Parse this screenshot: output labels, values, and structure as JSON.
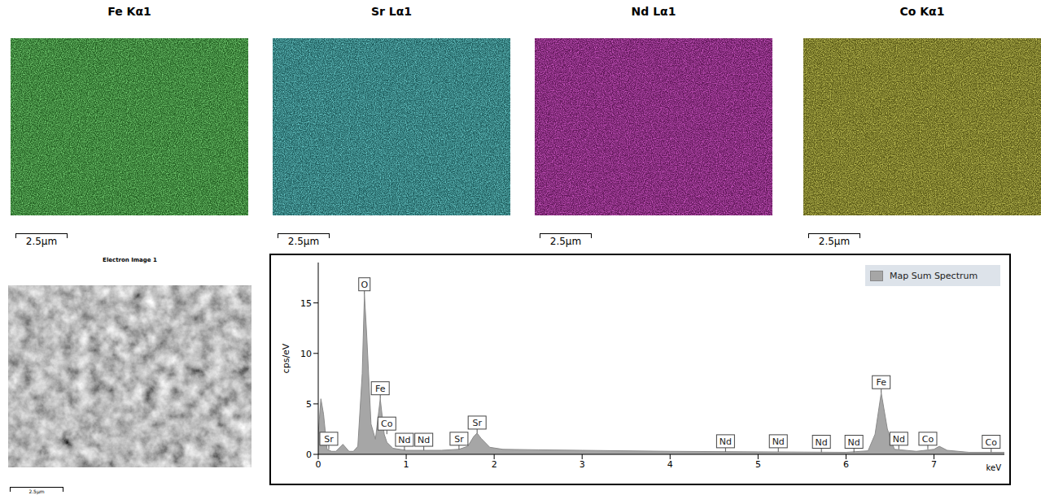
{
  "maps": [
    {
      "title": "Fe Kα1",
      "color": "#3cc43a",
      "scale_bar": "2.5µm"
    },
    {
      "title": "Sr Lα1",
      "color": "#2fb8b8",
      "scale_bar": "2.5µm"
    },
    {
      "title": "Nd Lα1",
      "color": "#c020b0",
      "scale_bar": "2.5µm"
    },
    {
      "title": "Co Kα1",
      "color": "#b0b020",
      "scale_bar": "2.5µm"
    }
  ],
  "electron_image": {
    "title": "Electron Image 1",
    "scale_bar": "2.5µm"
  },
  "chart_data": {
    "type": "area",
    "y_label": "cps/eV",
    "x_label": "keV",
    "legend": "top-right",
    "series_name": "Map Sum Spectrum",
    "color": "#a6a6a6",
    "x": [
      0,
      0.03,
      0.06,
      0.1,
      0.15,
      0.2,
      0.28,
      0.35,
      0.4,
      0.45,
      0.5,
      0.525,
      0.55,
      0.6,
      0.65,
      0.705,
      0.75,
      0.78,
      0.85,
      1.0,
      1.2,
      1.4,
      1.6,
      1.7,
      1.77,
      1.806,
      1.85,
      1.95,
      2.1,
      2.5,
      3,
      4,
      5,
      6,
      6.25,
      6.33,
      6.4,
      6.47,
      6.55,
      6.8,
      7.0,
      7.06,
      7.15,
      7.4,
      7.8
    ],
    "values": [
      2,
      5.5,
      4,
      0.5,
      0.3,
      0.3,
      1.0,
      0.3,
      0.3,
      0.8,
      8,
      15.8,
      12,
      3,
      1.5,
      5.5,
      2,
      1.2,
      0.6,
      0.4,
      0.4,
      0.4,
      0.5,
      0.8,
      1.8,
      2.1,
      1.6,
      0.7,
      0.5,
      0.45,
      0.4,
      0.3,
      0.25,
      0.2,
      0.35,
      2,
      6.1,
      2.5,
      0.5,
      0.3,
      0.5,
      0.8,
      0.4,
      0.2,
      0.2
    ],
    "xlim": [
      0,
      7.8
    ],
    "xticks": [
      0,
      1,
      2,
      3,
      4,
      5,
      6,
      7
    ],
    "ylim": [
      0,
      19
    ],
    "yticks": [
      0,
      5,
      10,
      15
    ],
    "peak_labels": [
      {
        "label": "Sr",
        "x": 0.12
      },
      {
        "label": "O",
        "x": 0.525
      },
      {
        "label": "Fe",
        "x": 0.705
      },
      {
        "label": "Co",
        "x": 0.78
      },
      {
        "label": "Nd",
        "x": 0.98
      },
      {
        "label": "Nd",
        "x": 1.2
      },
      {
        "label": "Sr",
        "x": 1.6
      },
      {
        "label": "Sr",
        "x": 1.806
      },
      {
        "label": "Nd",
        "x": 4.63
      },
      {
        "label": "Nd",
        "x": 5.23
      },
      {
        "label": "Nd",
        "x": 5.72
      },
      {
        "label": "Nd",
        "x": 6.09
      },
      {
        "label": "Fe",
        "x": 6.4
      },
      {
        "label": "Nd",
        "x": 6.6
      },
      {
        "label": "Co",
        "x": 6.93
      },
      {
        "label": "Co",
        "x": 7.65
      }
    ]
  }
}
